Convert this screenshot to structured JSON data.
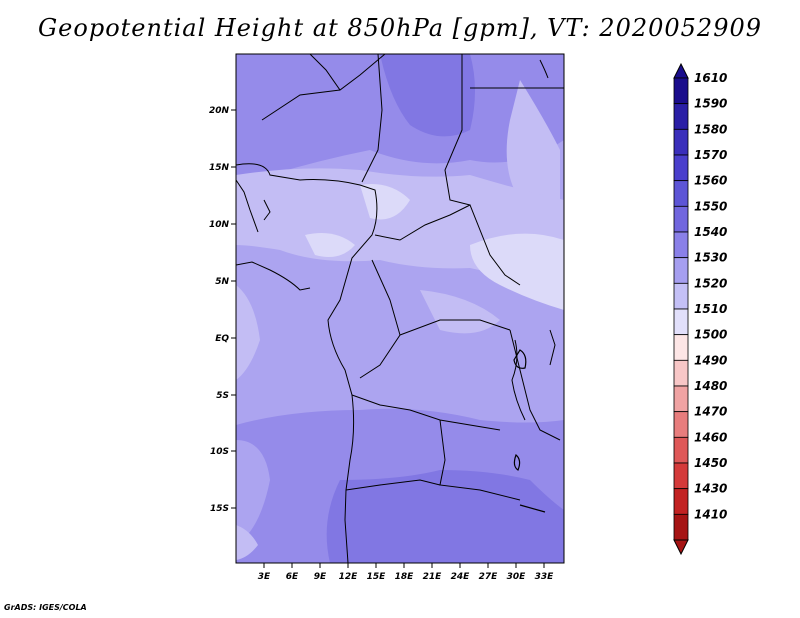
{
  "title": "Geopotential Height at 850hPa [gpm], VT: 2020052909",
  "footer": "GrADS: IGES/COLA",
  "map": {
    "lat_labels": [
      "20N",
      "15N",
      "10N",
      "5N",
      "EQ",
      "5S",
      "10S",
      "15S"
    ],
    "lon_labels": [
      "3E",
      "6E",
      "9E",
      "12E",
      "15E",
      "18E",
      "21E",
      "24E",
      "27E",
      "30E",
      "33E"
    ]
  },
  "colorbar": {
    "levels": [
      "1610",
      "1590",
      "1580",
      "1570",
      "1560",
      "1550",
      "1540",
      "1530",
      "1520",
      "1510",
      "1500",
      "1490",
      "1480",
      "1470",
      "1460",
      "1450",
      "1430",
      "1410"
    ],
    "colors": [
      "#1a0d8c",
      "#2a1fa6",
      "#3a2fbb",
      "#4a3fcc",
      "#5d55d6",
      "#7166de",
      "#8a80e8",
      "#a69ff0",
      "#c4c0f6",
      "#e2e0fb",
      "#fde6e6",
      "#f8c7c7",
      "#f0a3a3",
      "#e87d7d",
      "#df5858",
      "#d43a3a",
      "#c22222",
      "#a61414"
    ]
  },
  "legend_fill_colors": {
    "c1520": "#dcdaf9",
    "c1530": "#c3bdf4",
    "c1540": "#aca4f0",
    "c1550": "#958bea",
    "c1560": "#8177e3"
  }
}
